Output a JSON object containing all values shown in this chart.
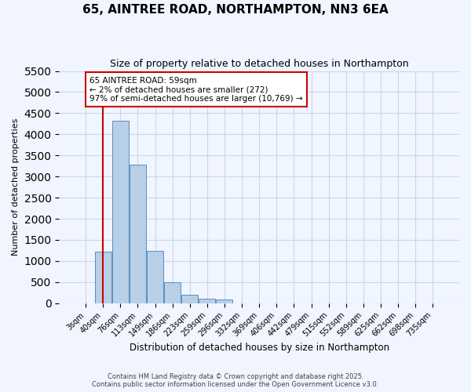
{
  "title": "65, AINTREE ROAD, NORTHAMPTON, NN3 6EA",
  "subtitle": "Size of property relative to detached houses in Northampton",
  "xlabel": "Distribution of detached houses by size in Northampton",
  "ylabel": "Number of detached properties",
  "bar_color": "#b8cfe8",
  "bar_edge_color": "#5a8fc0",
  "categories": [
    "3sqm",
    "40sqm",
    "76sqm",
    "113sqm",
    "149sqm",
    "186sqm",
    "223sqm",
    "259sqm",
    "296sqm",
    "332sqm",
    "369sqm",
    "406sqm",
    "442sqm",
    "479sqm",
    "515sqm",
    "552sqm",
    "589sqm",
    "625sqm",
    "662sqm",
    "698sqm",
    "735sqm"
  ],
  "values": [
    0,
    1220,
    4320,
    3280,
    1230,
    500,
    200,
    110,
    80,
    0,
    0,
    0,
    0,
    0,
    0,
    0,
    0,
    0,
    0,
    0,
    0
  ],
  "ylim": [
    0,
    5500
  ],
  "yticks": [
    0,
    500,
    1000,
    1500,
    2000,
    2500,
    3000,
    3500,
    4000,
    4500,
    5000,
    5500
  ],
  "property_line_x": 1.0,
  "annotation_title": "65 AINTREE ROAD: 59sqm",
  "annotation_line1": "← 2% of detached houses are smaller (272)",
  "annotation_line2": "97% of semi-detached houses are larger (10,769) →",
  "annotation_box_facecolor": "#ffffff",
  "annotation_box_edgecolor": "#cc0000",
  "line_color": "#cc0000",
  "footer1": "Contains HM Land Registry data © Crown copyright and database right 2025.",
  "footer2": "Contains public sector information licensed under the Open Government Licence v3.0.",
  "bg_color": "#f0f5ff",
  "grid_color": "#c8d8e8"
}
